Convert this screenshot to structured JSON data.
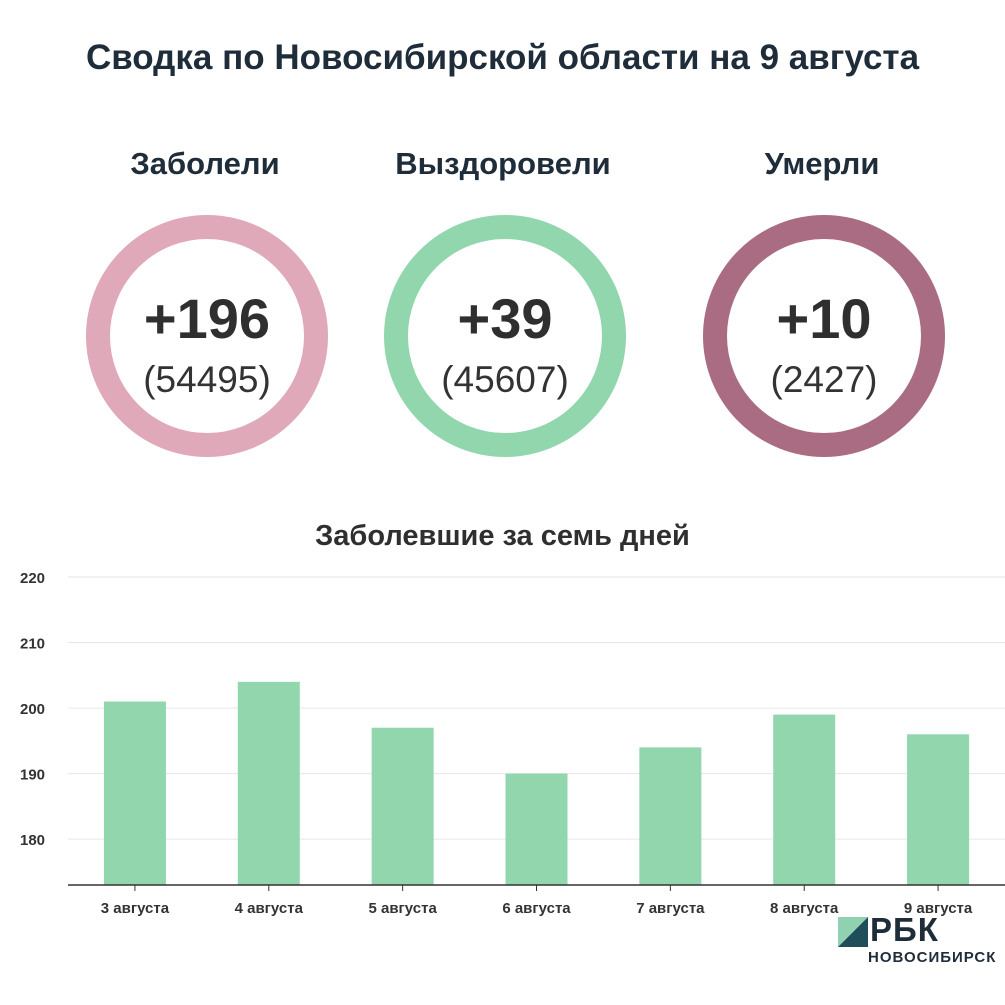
{
  "header": {
    "title": "Сводка по Новосибирской области на 9 августа"
  },
  "stats": [
    {
      "label": "Заболели",
      "delta": "+196",
      "total": "(54495)",
      "color": "#dfa9ba"
    },
    {
      "label": "Выздоровели",
      "delta": "+39",
      "total": "(45607)",
      "color": "#92d6ad"
    },
    {
      "label": "Умерли",
      "delta": "+10",
      "total": "(2427)",
      "color": "#a96c82"
    }
  ],
  "chart_data": {
    "type": "bar",
    "title": "Заболевшие за семь дней",
    "categories": [
      "3 августа",
      "4 августа",
      "5 августа",
      "6 августа",
      "7 августа",
      "8 августа",
      "9 августа"
    ],
    "values": [
      201,
      204,
      197,
      190,
      194,
      199,
      196
    ],
    "ylim": [
      173,
      220
    ],
    "yticks": [
      180,
      190,
      200,
      210,
      220
    ],
    "bar_color": "#92d6ad",
    "grid": true
  },
  "logo": {
    "name": "РБК",
    "sub": "НОВОСИБИРСК",
    "color_dark": "#1f4e5a",
    "color_light": "#8fd1b0"
  }
}
